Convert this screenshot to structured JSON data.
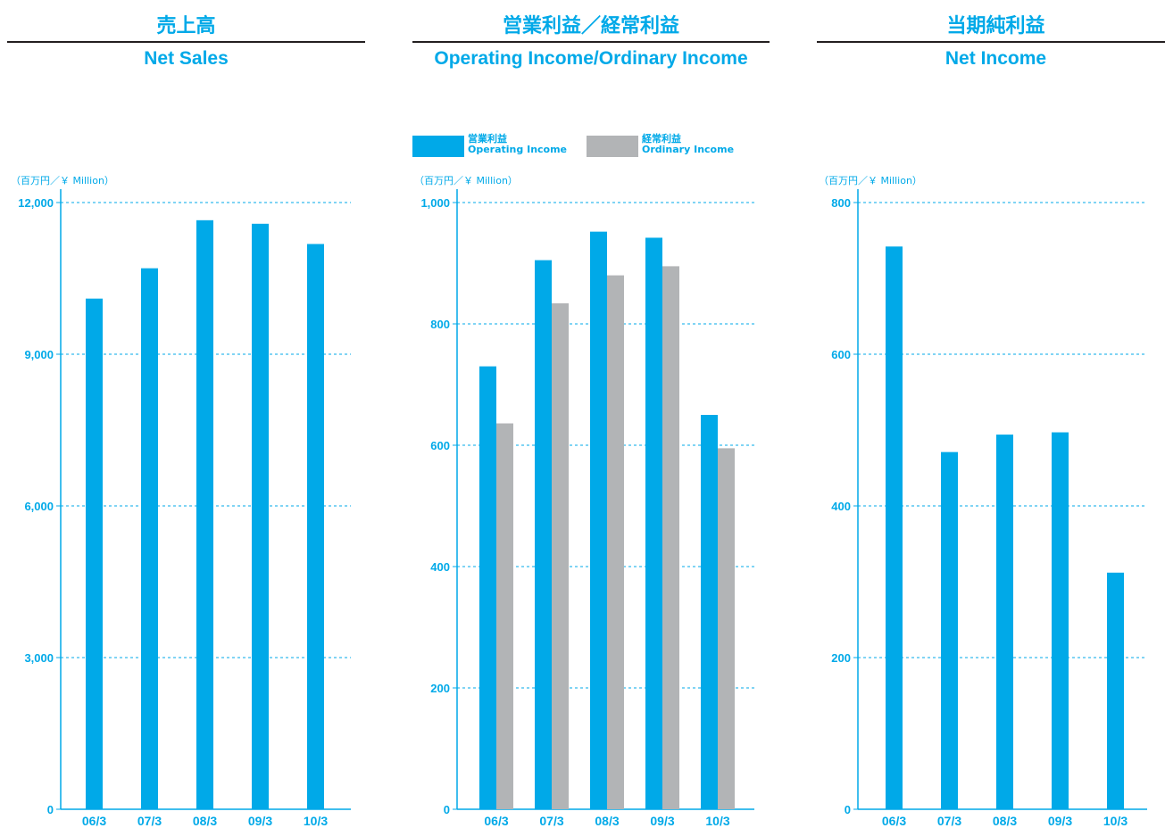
{
  "colors": {
    "accent": "#00a9e8",
    "secondary": "#b2b4b6",
    "rule": "#231f20"
  },
  "unit_label": "（百万円／￥ Million）",
  "chart_data": [
    {
      "type": "bar",
      "title_jp": "売上高",
      "title": "Net Sales",
      "categories": [
        "06/3",
        "07/3",
        "08/3",
        "09/3",
        "10/3"
      ],
      "series": [
        {
          "values": [
            10100,
            10700,
            11650,
            11580,
            11180
          ],
          "color": "#00a9e8"
        }
      ],
      "ylim": [
        0,
        12000
      ],
      "yticks": [
        0,
        3000,
        6000,
        9000,
        12000
      ],
      "ytick_labels": [
        "0",
        "3,000",
        "6,000",
        "9,000",
        "12,000"
      ],
      "grid": true,
      "legend": null
    },
    {
      "type": "bar",
      "title_jp": "営業利益／経常利益",
      "title": "Operating Income/Ordinary Income",
      "categories": [
        "06/3",
        "07/3",
        "08/3",
        "09/3",
        "10/3"
      ],
      "series": [
        {
          "name_jp": "営業利益",
          "name": "Operating Income",
          "values": [
            730,
            905,
            952,
            942,
            650
          ],
          "color": "#00a9e8"
        },
        {
          "name_jp": "経常利益",
          "name": "Ordinary Income",
          "values": [
            636,
            834,
            880,
            895,
            595
          ],
          "color": "#b2b4b6"
        }
      ],
      "ylim": [
        0,
        1000
      ],
      "yticks": [
        0,
        200,
        400,
        600,
        800,
        1000
      ],
      "ytick_labels": [
        "0",
        "200",
        "400",
        "600",
        "800",
        "1,000"
      ],
      "grid": true,
      "legend": "top"
    },
    {
      "type": "bar",
      "title_jp": "当期純利益",
      "title": "Net Income",
      "categories": [
        "06/3",
        "07/3",
        "08/3",
        "09/3",
        "10/3"
      ],
      "series": [
        {
          "values": [
            742,
            471,
            494,
            497,
            312
          ],
          "color": "#00a9e8"
        }
      ],
      "ylim": [
        0,
        800
      ],
      "yticks": [
        0,
        200,
        400,
        600,
        800
      ],
      "ytick_labels": [
        "0",
        "200",
        "400",
        "600",
        "800"
      ],
      "grid": true,
      "legend": null
    }
  ]
}
